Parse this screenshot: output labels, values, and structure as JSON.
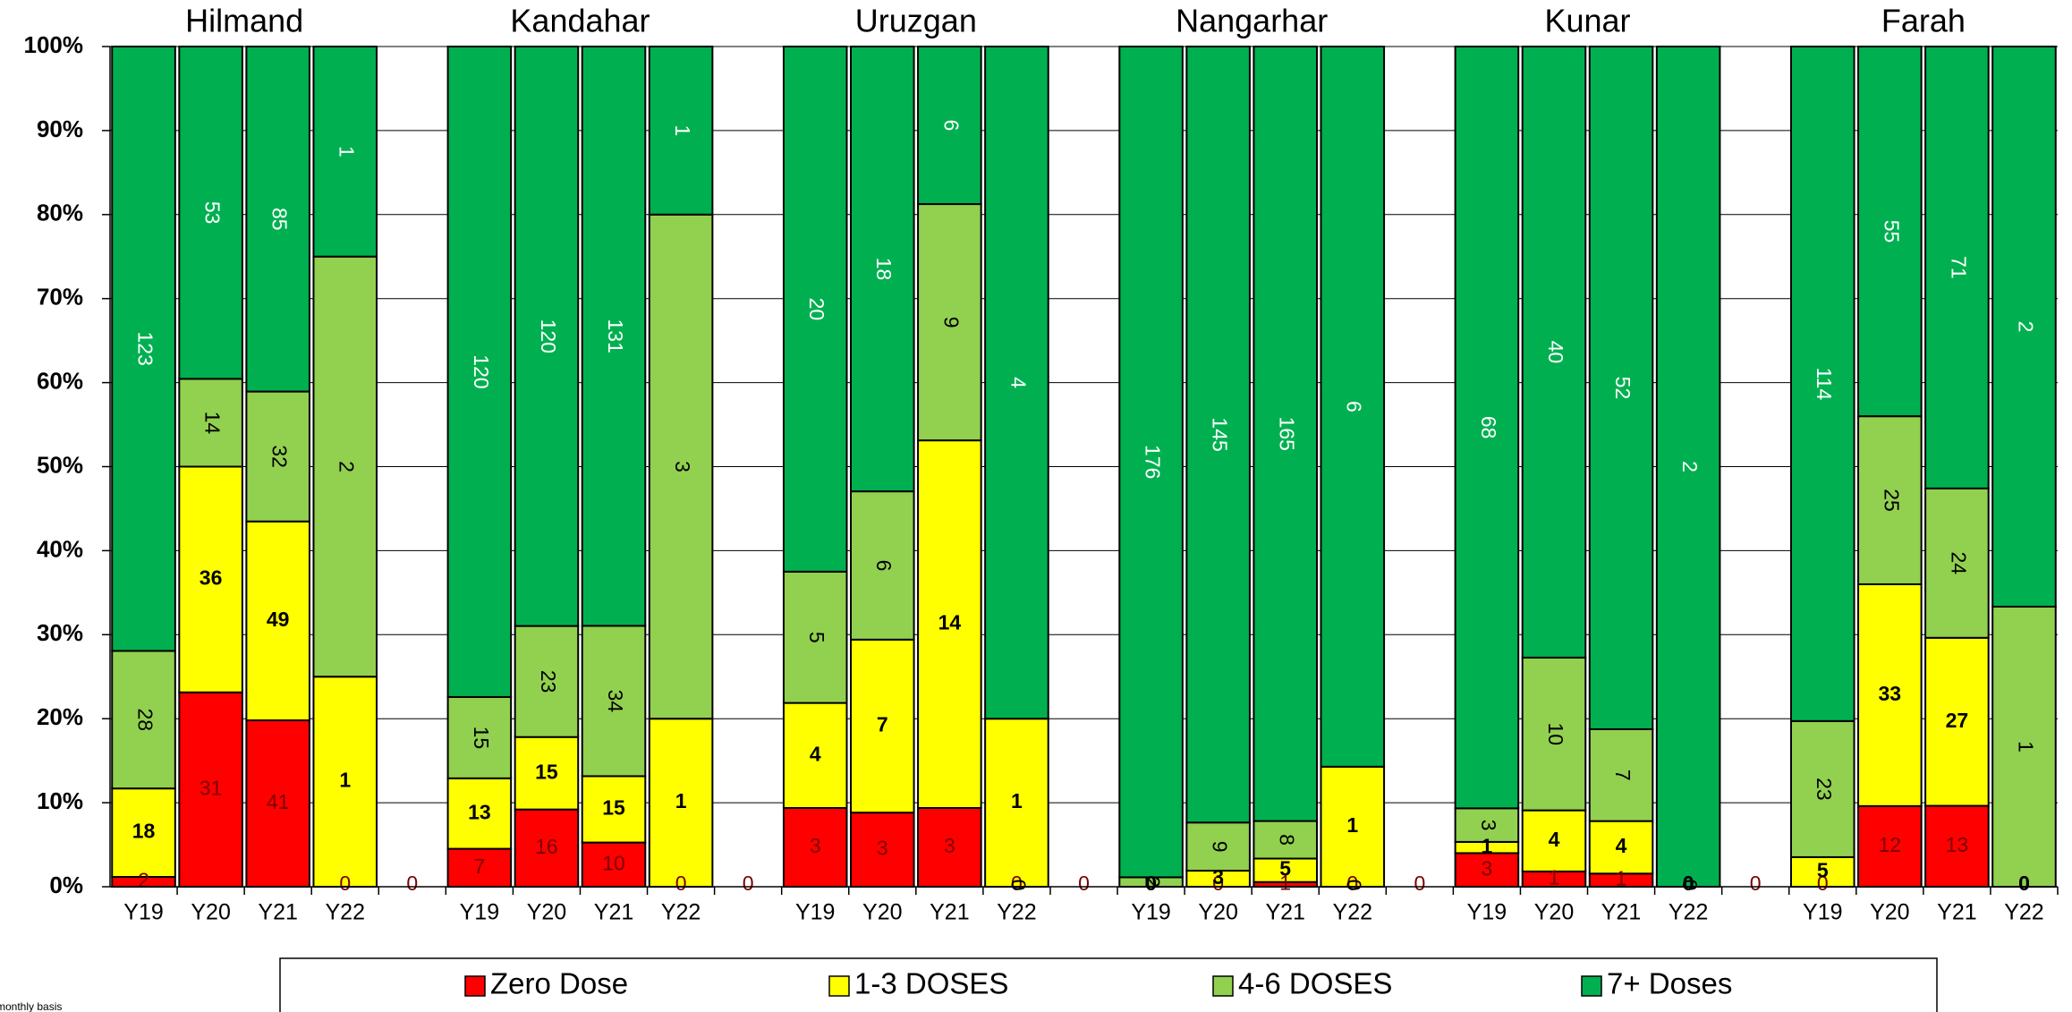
{
  "chart_data": {
    "type": "bar",
    "stacked": "percent",
    "groups": [
      "Hilmand",
      "Kandahar",
      "Uruzgan",
      "Nangarhar",
      "Kunar",
      "Farah"
    ],
    "categories": [
      "Y19",
      "Y20",
      "Y21",
      "Y22",
      null,
      "Y19",
      "Y20",
      "Y21",
      "Y22",
      null,
      "Y19",
      "Y20",
      "Y21",
      "Y22",
      null,
      "Y19",
      "Y20",
      "Y21",
      "Y22",
      null,
      "Y19",
      "Y20",
      "Y21",
      "Y22",
      null,
      "Y19",
      "Y20",
      "Y21",
      "Y22"
    ],
    "series": [
      {
        "name": "Zero Dose",
        "color": "#ff0000",
        "label_color": "#7a0000",
        "label_bold": false,
        "label_rotate": 0,
        "values": [
          2,
          31,
          41,
          0,
          0,
          7,
          16,
          10,
          0,
          0,
          3,
          3,
          3,
          0,
          0,
          0,
          0,
          1,
          0,
          0,
          3,
          1,
          1,
          0,
          0,
          0,
          12,
          13,
          0
        ]
      },
      {
        "name": "1-3 DOSES",
        "color": "#ffff00",
        "label_color": "#000000",
        "label_bold": true,
        "label_rotate": 0,
        "values": [
          18,
          36,
          49,
          1,
          null,
          13,
          15,
          15,
          1,
          null,
          4,
          7,
          14,
          1,
          null,
          0,
          3,
          5,
          1,
          null,
          1,
          4,
          4,
          0,
          null,
          5,
          33,
          27,
          0
        ]
      },
      {
        "name": "4-6 DOSES",
        "color": "#92d050",
        "label_color": "#000000",
        "label_bold": false,
        "label_rotate": 90,
        "values": [
          28,
          14,
          32,
          2,
          null,
          15,
          23,
          34,
          3,
          null,
          5,
          6,
          9,
          0,
          null,
          2,
          9,
          8,
          0,
          null,
          3,
          10,
          7,
          0,
          null,
          23,
          25,
          24,
          1
        ]
      },
      {
        "name": "7+ Doses",
        "color": "#00b050",
        "label_color": "#ffffff",
        "label_bold": false,
        "label_rotate": 90,
        "values": [
          123,
          53,
          85,
          1,
          null,
          120,
          120,
          131,
          1,
          null,
          20,
          18,
          6,
          4,
          null,
          176,
          145,
          165,
          6,
          null,
          68,
          40,
          52,
          2,
          null,
          114,
          55,
          71,
          2
        ]
      }
    ],
    "ylim": [
      0,
      100
    ],
    "yticks": [
      {
        "value": 0,
        "label": "0%"
      },
      {
        "value": 10,
        "label": "10%"
      },
      {
        "value": 20,
        "label": "20%"
      },
      {
        "value": 30,
        "label": "30%"
      },
      {
        "value": 40,
        "label": "40%"
      },
      {
        "value": 50,
        "label": "50%"
      },
      {
        "value": 60,
        "label": "60%"
      },
      {
        "value": 70,
        "label": "70%"
      },
      {
        "value": 80,
        "label": "80%"
      },
      {
        "value": 90,
        "label": "90%"
      },
      {
        "value": 100,
        "label": "100%"
      }
    ],
    "grid": true,
    "legend": "bottom",
    "footnote": "monthly basis"
  }
}
